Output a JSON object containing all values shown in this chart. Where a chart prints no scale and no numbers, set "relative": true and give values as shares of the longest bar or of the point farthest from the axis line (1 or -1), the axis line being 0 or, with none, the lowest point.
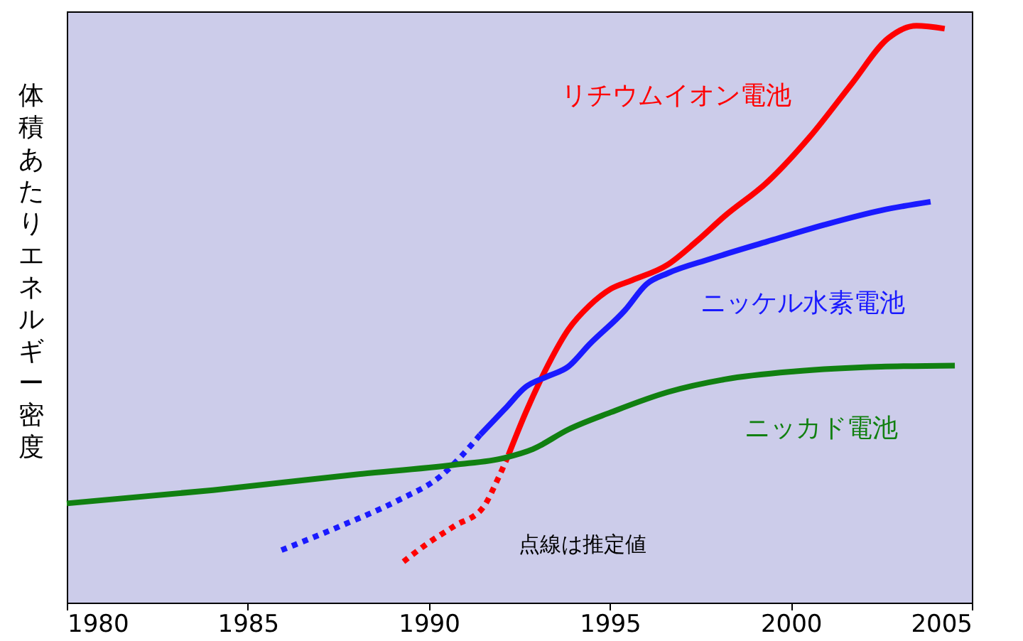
{
  "chart_data": {
    "type": "line",
    "relative": true,
    "ylabel": "体積あたりエネルギー密度",
    "xlim": [
      1980,
      2005
    ],
    "xticks": [
      1980,
      1985,
      1990,
      1995,
      2000,
      2005
    ],
    "annotations": [
      "点線は推定値"
    ],
    "series": [
      {
        "name": "リチウムイオン電池",
        "color": "#ff0000",
        "line_style": "solid",
        "x": [
          1992.2,
          1992.68,
          1993.27,
          1993.85,
          1994.44,
          1995.03,
          1995.62,
          1996.6,
          1997.39,
          1998.17,
          1999.35,
          2000.53,
          2001.7,
          2002.68,
          2003.47,
          2004.25
        ],
        "values": [
          0.256,
          0.33,
          0.409,
          0.473,
          0.515,
          0.544,
          0.559,
          0.586,
          0.626,
          0.67,
          0.729,
          0.808,
          0.901,
          0.978,
          1,
          0.995
        ]
      },
      {
        "color": "#ff0000",
        "line_style": "dotted",
        "x": [
          1989.3,
          1989.93,
          1990.71,
          1991.5,
          1991.89,
          1992.2
        ],
        "values": [
          0.071,
          0.101,
          0.133,
          0.165,
          0.212,
          0.256
        ]
      },
      {
        "name": "ニッケル水素電池",
        "color": "#1a1aff",
        "line_style": "solid",
        "x": [
          1991.42,
          1992.09,
          1992.68,
          1993.27,
          1993.85,
          1994.44,
          1995.42,
          1996.01,
          1996.6,
          1997.78,
          1999.35,
          2000.92,
          2002.49,
          2003.86
        ],
        "values": [
          0.291,
          0.335,
          0.374,
          0.392,
          0.409,
          0.448,
          0.507,
          0.552,
          0.571,
          0.596,
          0.626,
          0.655,
          0.68,
          0.695
        ]
      },
      {
        "color": "#1a1aff",
        "line_style": "dotted",
        "x": [
          1985.93,
          1987.57,
          1989.14,
          1990.32,
          1991.42
        ],
        "values": [
          0.091,
          0.133,
          0.177,
          0.219,
          0.291
        ]
      },
      {
        "name": "ニッカド電池",
        "color": "#118011",
        "line_style": "solid",
        "x": [
          1980,
          1984.04,
          1987.97,
          1990.71,
          1992.09,
          1992.87,
          1993.85,
          1995.03,
          1996.6,
          1998.17,
          2000.13,
          2002.49,
          2004.53
        ],
        "values": [
          0.172,
          0.195,
          0.222,
          0.239,
          0.251,
          0.266,
          0.3,
          0.33,
          0.365,
          0.387,
          0.401,
          0.409,
          0.411
        ]
      }
    ]
  }
}
